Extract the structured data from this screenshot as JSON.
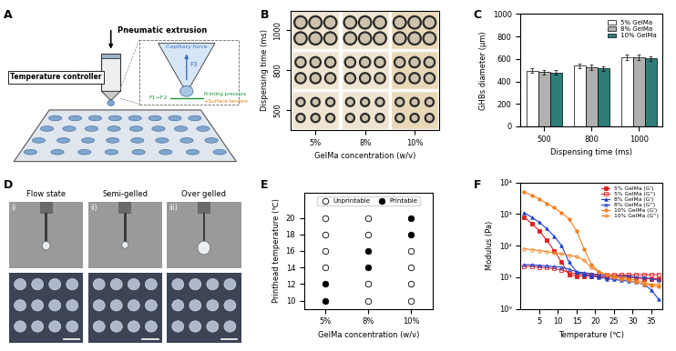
{
  "panels": {
    "A": {
      "label": "A",
      "texts": {
        "extrusion": "Pneumatic extrusion",
        "controller": "Temperature controller",
        "capillary": "Capillary force",
        "f3": "F3",
        "f12": "F1+F2",
        "pressure": "Printing pressure",
        "tension": "+Surface tension"
      }
    },
    "B": {
      "label": "B",
      "xlabel": "GelMa concentration (w/v)",
      "ylabel": "Dispensing time (ms)",
      "x_categories": [
        "5%",
        "8%",
        "10%"
      ],
      "y_categories": [
        "500",
        "800",
        "1000"
      ]
    },
    "D": {
      "label": "D",
      "states": [
        {
          "tag": "i)",
          "name": "Flow state"
        },
        {
          "tag": "ii)",
          "name": "Semi-gelled"
        },
        {
          "tag": "iii)",
          "name": "Over gelled"
        }
      ]
    }
  },
  "chart_data": [
    {
      "panel": "C",
      "type": "bar",
      "xlabel": "Dispensing time (ms)",
      "ylabel": "GHBs diameter (μm)",
      "categories": [
        "500",
        "800",
        "1000"
      ],
      "series": [
        {
          "name": "5% GelMa",
          "color": "#ffffff",
          "values": [
            495,
            540,
            615
          ],
          "errors": [
            20,
            20,
            25
          ]
        },
        {
          "name": "8% GelMa",
          "color": "#b0b0b0",
          "values": [
            485,
            525,
            615
          ],
          "errors": [
            20,
            22,
            22
          ]
        },
        {
          "name": "10% GelMa",
          "color": "#2e7d78",
          "values": [
            480,
            515,
            605
          ],
          "errors": [
            18,
            20,
            22
          ]
        }
      ],
      "ylim": [
        0,
        1000
      ],
      "yticks": [
        0,
        200,
        400,
        600,
        800,
        1000
      ],
      "legend": "upper right"
    },
    {
      "panel": "E",
      "type": "scatter",
      "xlabel": "GelMa concentration (w/v)",
      "ylabel": "Printhead temperature (℃)",
      "categories": [
        "5%",
        "8%",
        "10%"
      ],
      "series": [
        {
          "name": "Unprintable",
          "marker": "open",
          "color": "#000000",
          "x": [
            "5%",
            "5%",
            "5%",
            "5%",
            "8%",
            "8%",
            "8%",
            "8%",
            "10%",
            "10%",
            "10%",
            "10%"
          ],
          "values": [
            14,
            16,
            18,
            20,
            10,
            12,
            18,
            20,
            10,
            12,
            14,
            16
          ]
        },
        {
          "name": "Printable",
          "marker": "filled",
          "color": "#000000",
          "x": [
            "5%",
            "5%",
            "8%",
            "8%",
            "10%",
            "10%"
          ],
          "values": [
            10,
            12,
            14,
            16,
            18,
            20
          ]
        }
      ],
      "ylim": [
        9,
        23
      ],
      "yticks": [
        10,
        12,
        14,
        16,
        18,
        20
      ],
      "legend": "upper center"
    },
    {
      "panel": "F",
      "type": "line",
      "log": "y",
      "xlabel": "Temperature (℃)",
      "ylabel": "Modulus (Pa)",
      "x": [
        1,
        3,
        5,
        7,
        9,
        11,
        13,
        15,
        17,
        19,
        21,
        23,
        25,
        27,
        29,
        31,
        33,
        35,
        37
      ],
      "series": [
        {
          "name": "5% GelMa (G')",
          "color": "#e02020",
          "marker": "square",
          "values": [
            800,
            500,
            300,
            150,
            70,
            30,
            12,
            11,
            11,
            11,
            10.5,
            10,
            10,
            10,
            10,
            9.5,
            9,
            9,
            9
          ]
        },
        {
          "name": "5% GelMa (G'')",
          "color": "#e02020",
          "marker": "square_open",
          "values": [
            22,
            22,
            21,
            20,
            19,
            17,
            14,
            13,
            12.5,
            12,
            12,
            12,
            12,
            12,
            12,
            12,
            12,
            12,
            12
          ]
        },
        {
          "name": "8% GelMa (G')",
          "color": "#2040d0",
          "marker": "triangle",
          "values": [
            1100,
            800,
            550,
            350,
            200,
            100,
            30,
            15,
            12,
            11,
            10,
            9,
            8.5,
            8,
            7.5,
            7,
            6,
            4,
            2
          ]
        },
        {
          "name": "8% GelMa (G'')",
          "color": "#2040d0",
          "marker": "triangle_open",
          "values": [
            25,
            25,
            24,
            23,
            22,
            21,
            18,
            15,
            14,
            13,
            12,
            11,
            11,
            11,
            11,
            10,
            10,
            9,
            8
          ]
        },
        {
          "name": "10% GelMa (G')",
          "color": "#f08020",
          "marker": "circle",
          "values": [
            5000,
            4000,
            3000,
            2200,
            1600,
            1100,
            700,
            300,
            80,
            25,
            15,
            12,
            10,
            9,
            8,
            7,
            6,
            5.5,
            5
          ]
        },
        {
          "name": "10% GelMa (G'')",
          "color": "#f08020",
          "marker": "circle_open",
          "values": [
            80,
            75,
            70,
            65,
            60,
            55,
            50,
            45,
            35,
            20,
            15,
            12,
            11,
            10,
            9,
            8,
            7,
            6,
            6
          ]
        }
      ],
      "xlim": [
        0,
        38
      ],
      "xticks": [
        5,
        10,
        15,
        20,
        25,
        30,
        35
      ],
      "ylim": [
        1,
        10000
      ],
      "yticks": [
        {
          "value": 1,
          "label": "10⁰"
        },
        {
          "value": 10,
          "label": "10¹"
        },
        {
          "value": 100,
          "label": "10²"
        },
        {
          "value": 1000,
          "label": "10³"
        },
        {
          "value": 10000,
          "label": "10⁴"
        }
      ],
      "legend": "upper right"
    }
  ]
}
